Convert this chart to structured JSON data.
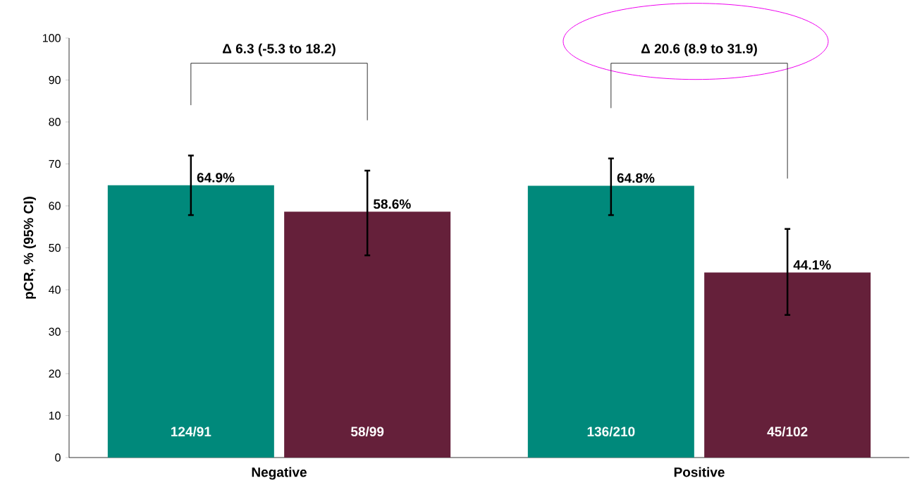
{
  "chart_data": {
    "type": "bar",
    "ylabel": "pCR, % (95% CI)",
    "categories": [
      "Negative",
      "Positive"
    ],
    "series": [
      {
        "color": "#00897b",
        "values": [
          64.9,
          64.8
        ],
        "errors": [
          [
            57.8,
            72.0
          ],
          [
            57.8,
            71.3
          ]
        ],
        "value_labels": [
          "64.9%",
          "64.8%"
        ]
      },
      {
        "color": "#65203a",
        "values": [
          58.6,
          44.1
        ],
        "errors": [
          [
            48.2,
            68.4
          ],
          [
            34.0,
            54.5
          ]
        ],
        "value_labels": [
          "58.6%",
          "44.1%"
        ]
      }
    ],
    "ylim": [
      0,
      100
    ],
    "yticks": [
      0,
      10,
      20,
      30,
      40,
      50,
      60,
      70,
      80,
      90,
      100
    ],
    "grid": false,
    "annotations": [
      "Δ 6.3 (-5.3 to 18.2)",
      "Δ 20.6 (8.9 to 31.9)",
      "124/91",
      "58/99",
      "136/210",
      "45/102"
    ]
  }
}
